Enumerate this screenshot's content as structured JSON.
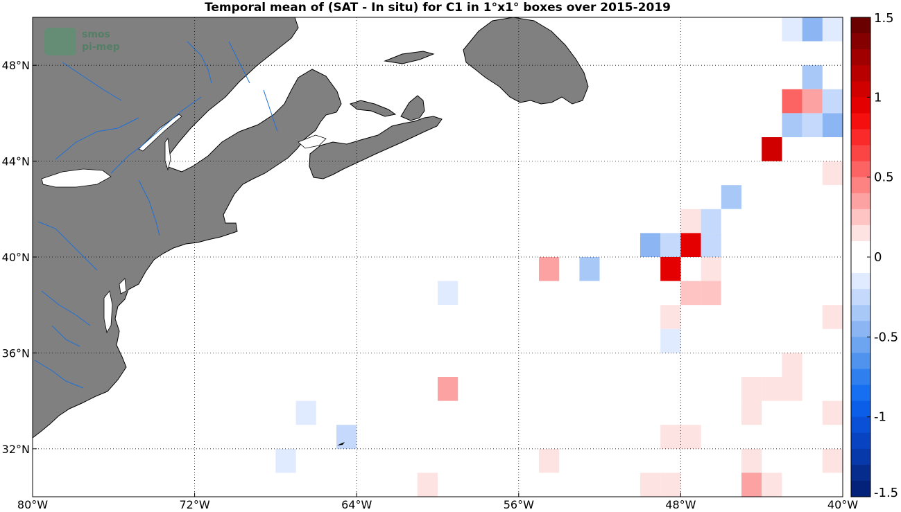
{
  "chart_data": {
    "type": "heatmap",
    "title": "Temporal mean of (SAT - In situ) for C1 in 1°x1° boxes over 2015-2019",
    "lon_range": [
      -80,
      -40
    ],
    "lat_range": [
      30,
      50
    ],
    "x_ticks": [
      {
        "value": -80,
        "label": "80°W"
      },
      {
        "value": -72,
        "label": "72°W"
      },
      {
        "value": -64,
        "label": "64°W"
      },
      {
        "value": -56,
        "label": "56°W"
      },
      {
        "value": -48,
        "label": "48°W"
      },
      {
        "value": -40,
        "label": "40°W"
      }
    ],
    "y_ticks": [
      {
        "value": 48,
        "label": "48°N"
      },
      {
        "value": 44,
        "label": "44°N"
      },
      {
        "value": 40,
        "label": "40°N"
      },
      {
        "value": 36,
        "label": "36°N"
      },
      {
        "value": 32,
        "label": "32°N"
      }
    ],
    "grid": "dotted",
    "land_color": "#808080",
    "river_color": "#1f6fd6",
    "colorbar": {
      "range": [
        -1.5,
        1.5
      ],
      "ticks": [
        {
          "value": 1.5,
          "label": "1.5"
        },
        {
          "value": 1,
          "label": "1"
        },
        {
          "value": 0.5,
          "label": "0.5"
        },
        {
          "value": 0,
          "label": "0"
        },
        {
          "value": -0.5,
          "label": "-0.5"
        },
        {
          "value": -1,
          "label": "-1"
        },
        {
          "value": -1.5,
          "label": "-1.5"
        }
      ],
      "colors_high_to_low": [
        "#6b0000",
        "#850000",
        "#a00000",
        "#b80000",
        "#d00000",
        "#e40000",
        "#f60f0f",
        "#fa2a2a",
        "#fb4545",
        "#fc6363",
        "#fd8282",
        "#fda2a2",
        "#fec4c4",
        "#fee3e3",
        "#ffffff",
        "#ffffff",
        "#e0ebff",
        "#c4d9fb",
        "#a8c8f7",
        "#8bb6f3",
        "#6ea5f0",
        "#4f93ee",
        "#2f80ee",
        "#156ff0",
        "#0a5ee8",
        "#0950d6",
        "#0844c2",
        "#0739aa",
        "#062d8e",
        "#05227a"
      ]
    },
    "cells": [
      {
        "lon": -40.5,
        "lat": 49.5,
        "value": -0.1
      },
      {
        "lon": -41.5,
        "lat": 49.5,
        "value": -0.45
      },
      {
        "lon": -42.5,
        "lat": 49.5,
        "value": -0.15
      },
      {
        "lon": -41.5,
        "lat": 48.5,
        "value": -0.05
      },
      {
        "lon": -41.5,
        "lat": 47.5,
        "value": -0.35
      },
      {
        "lon": -42.5,
        "lat": 46.5,
        "value": 0.55
      },
      {
        "lon": -41.5,
        "lat": 46.5,
        "value": 0.4
      },
      {
        "lon": -40.5,
        "lat": 46.5,
        "value": -0.2
      },
      {
        "lon": -42.5,
        "lat": 45.5,
        "value": -0.35
      },
      {
        "lon": -41.5,
        "lat": 45.5,
        "value": -0.2
      },
      {
        "lon": -40.5,
        "lat": 45.5,
        "value": -0.45
      },
      {
        "lon": -43.5,
        "lat": 44.5,
        "value": 1.05
      },
      {
        "lon": -41.5,
        "lat": 44.5,
        "value": -0.05
      },
      {
        "lon": -40.5,
        "lat": 44.5,
        "value": -0.05
      },
      {
        "lon": -42.5,
        "lat": 43.5,
        "value": -0.05
      },
      {
        "lon": -40.5,
        "lat": 43.5,
        "value": 0.15
      },
      {
        "lon": -45.5,
        "lat": 42.5,
        "value": -0.3
      },
      {
        "lon": -44.5,
        "lat": 42.5,
        "value": -0.05
      },
      {
        "lon": -43.5,
        "lat": 42.5,
        "value": -0.05
      },
      {
        "lon": -42.5,
        "lat": 42.5,
        "value": -0.05
      },
      {
        "lon": -41.5,
        "lat": 42.5,
        "value": -0.05
      },
      {
        "lon": -40.5,
        "lat": 42.5,
        "value": -0.05
      },
      {
        "lon": -47.5,
        "lat": 41.5,
        "value": 0.15
      },
      {
        "lon": -46.5,
        "lat": 41.5,
        "value": -0.2
      },
      {
        "lon": -45.5,
        "lat": 41.5,
        "value": -0.05
      },
      {
        "lon": -44.5,
        "lat": 41.5,
        "value": -0.05
      },
      {
        "lon": -43.5,
        "lat": 41.5,
        "value": -0.05
      },
      {
        "lon": -42.5,
        "lat": 41.5,
        "value": -0.05
      },
      {
        "lon": -49.5,
        "lat": 40.5,
        "value": -0.4
      },
      {
        "lon": -48.5,
        "lat": 40.5,
        "value": -0.2
      },
      {
        "lon": -47.5,
        "lat": 40.5,
        "value": 0.9
      },
      {
        "lon": -46.5,
        "lat": 40.5,
        "value": -0.2
      },
      {
        "lon": -42.5,
        "lat": 40.5,
        "value": -0.05
      },
      {
        "lon": -54.5,
        "lat": 39.5,
        "value": 0.4
      },
      {
        "lon": -52.5,
        "lat": 39.5,
        "value": -0.3
      },
      {
        "lon": -51.5,
        "lat": 39.5,
        "value": -0.05
      },
      {
        "lon": -48.5,
        "lat": 39.5,
        "value": 0.95
      },
      {
        "lon": -46.5,
        "lat": 39.5,
        "value": 0.15
      },
      {
        "lon": -59.5,
        "lat": 38.5,
        "value": -0.15
      },
      {
        "lon": -56.5,
        "lat": 38.5,
        "value": -0.05
      },
      {
        "lon": -51.5,
        "lat": 38.5,
        "value": -0.05
      },
      {
        "lon": -47.5,
        "lat": 38.5,
        "value": 0.25
      },
      {
        "lon": -46.5,
        "lat": 38.5,
        "value": 0.25
      },
      {
        "lon": -45.5,
        "lat": 38.5,
        "value": -0.05
      },
      {
        "lon": -44.5,
        "lat": 38.5,
        "value": -0.05
      },
      {
        "lon": -60.5,
        "lat": 37.5,
        "value": -0.05
      },
      {
        "lon": -59.5,
        "lat": 37.5,
        "value": -0.05
      },
      {
        "lon": -48.5,
        "lat": 37.5,
        "value": 0.15
      },
      {
        "lon": -42.5,
        "lat": 37.5,
        "value": -0.05
      },
      {
        "lon": -40.5,
        "lat": 37.5,
        "value": 0.15
      },
      {
        "lon": -48.5,
        "lat": 36.5,
        "value": -0.1
      },
      {
        "lon": -42.5,
        "lat": 35.5,
        "value": 0.1
      },
      {
        "lon": -44.5,
        "lat": 34.5,
        "value": 0.1
      },
      {
        "lon": -43.5,
        "lat": 34.5,
        "value": 0.1
      },
      {
        "lon": -42.5,
        "lat": 34.5,
        "value": 0.1
      },
      {
        "lon": -59.5,
        "lat": 34.5,
        "value": 0.3
      },
      {
        "lon": -44.5,
        "lat": 33.5,
        "value": 0.1
      },
      {
        "lon": -40.5,
        "lat": 33.5,
        "value": 0.1
      },
      {
        "lon": -66.5,
        "lat": 33.5,
        "value": -0.1
      },
      {
        "lon": -64.5,
        "lat": 32.5,
        "value": -0.2
      },
      {
        "lon": -48.5,
        "lat": 32.5,
        "value": 0.1
      },
      {
        "lon": -47.5,
        "lat": 32.5,
        "value": 0.1
      },
      {
        "lon": -67.5,
        "lat": 31.5,
        "value": -0.1
      },
      {
        "lon": -54.5,
        "lat": 31.5,
        "value": 0.1
      },
      {
        "lon": -44.5,
        "lat": 31.5,
        "value": 0.1
      },
      {
        "lon": -42.5,
        "lat": 31.5,
        "value": -0.05
      },
      {
        "lon": -40.5,
        "lat": 31.5,
        "value": 0.1
      },
      {
        "lon": -61.5,
        "lat": 30.5,
        "value": -0.05
      },
      {
        "lon": -60.5,
        "lat": 30.5,
        "value": 0.1
      },
      {
        "lon": -49.5,
        "lat": 30.5,
        "value": 0.1
      },
      {
        "lon": -48.5,
        "lat": 30.5,
        "value": 0.1
      },
      {
        "lon": -44.5,
        "lat": 30.5,
        "value": 0.3
      },
      {
        "lon": -43.5,
        "lat": 30.5,
        "value": 0.1
      }
    ]
  },
  "logo": {
    "line1": "smos",
    "line2": "pi-mep"
  }
}
